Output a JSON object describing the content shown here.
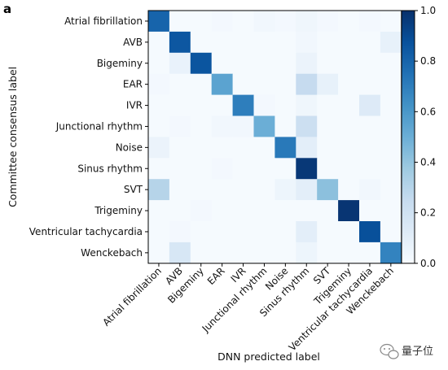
{
  "panel_label": "a",
  "watermark": {
    "text": "量子位"
  },
  "chart_data": {
    "type": "heatmap",
    "xlabel": "DNN predicted label",
    "ylabel": "Committee consensus label",
    "categories": [
      "Atrial fibrillation",
      "AVB",
      "Bigeminy",
      "EAR",
      "IVR",
      "Junctional rhythm",
      "Noise",
      "Sinus rhythm",
      "SVT",
      "Trigeminy",
      "Ventricular tachycardia",
      "Wenckebach"
    ],
    "values": [
      [
        0.8,
        0.01,
        0.01,
        0.02,
        0.01,
        0.03,
        0.02,
        0.04,
        0.02,
        0.01,
        0.02,
        0.01
      ],
      [
        0.01,
        0.85,
        0.01,
        0.01,
        0.01,
        0.01,
        0.01,
        0.03,
        0.01,
        0.01,
        0.01,
        0.08
      ],
      [
        0.01,
        0.07,
        0.86,
        0.01,
        0.01,
        0.01,
        0.01,
        0.06,
        0.01,
        0.01,
        0.01,
        0.01
      ],
      [
        0.02,
        0.01,
        0.01,
        0.55,
        0.01,
        0.01,
        0.01,
        0.25,
        0.08,
        0.01,
        0.01,
        0.01
      ],
      [
        0.01,
        0.01,
        0.01,
        0.01,
        0.7,
        0.02,
        0.01,
        0.04,
        0.01,
        0.01,
        0.13,
        0.01
      ],
      [
        0.01,
        0.02,
        0.01,
        0.03,
        0.03,
        0.5,
        0.01,
        0.22,
        0.01,
        0.01,
        0.01,
        0.01
      ],
      [
        0.06,
        0.01,
        0.01,
        0.01,
        0.01,
        0.01,
        0.72,
        0.1,
        0.01,
        0.01,
        0.01,
        0.01
      ],
      [
        0.01,
        0.01,
        0.01,
        0.02,
        0.01,
        0.01,
        0.01,
        0.97,
        0.01,
        0.01,
        0.01,
        0.01
      ],
      [
        0.3,
        0.01,
        0.01,
        0.01,
        0.01,
        0.01,
        0.05,
        0.1,
        0.42,
        0.01,
        0.03,
        0.01
      ],
      [
        0.01,
        0.01,
        0.02,
        0.01,
        0.01,
        0.01,
        0.01,
        0.01,
        0.01,
        0.98,
        0.01,
        0.01
      ],
      [
        0.01,
        0.02,
        0.01,
        0.01,
        0.01,
        0.01,
        0.01,
        0.1,
        0.01,
        0.01,
        0.88,
        0.01
      ],
      [
        0.01,
        0.16,
        0.01,
        0.01,
        0.01,
        0.01,
        0.01,
        0.05,
        0.01,
        0.01,
        0.01,
        0.68
      ]
    ],
    "colorbar": {
      "min": 0,
      "max": 1,
      "ticks": [
        0.0,
        0.2,
        0.4,
        0.6,
        0.8,
        1.0
      ],
      "tick_labels": [
        "0.0",
        "0.2",
        "0.4",
        "0.6",
        "0.8",
        "1.0"
      ],
      "colormap": "Blues"
    },
    "grid": false
  }
}
